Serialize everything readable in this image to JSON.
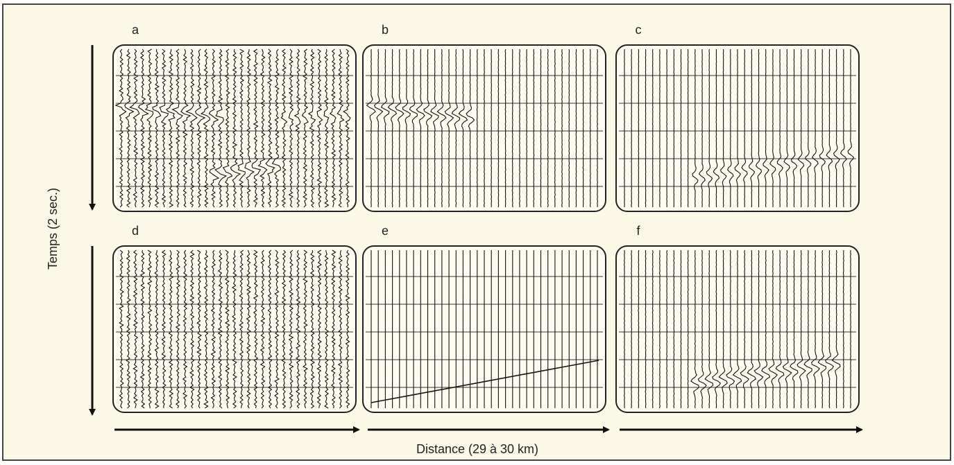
{
  "panels": [
    {
      "label": "a"
    },
    {
      "label": "b"
    },
    {
      "label": "c"
    },
    {
      "label": "d"
    },
    {
      "label": "e"
    },
    {
      "label": "f"
    }
  ],
  "axes": {
    "y_label": "Temps (2 sec.)",
    "x_label": "Distance (29 à 30 km)"
  }
}
